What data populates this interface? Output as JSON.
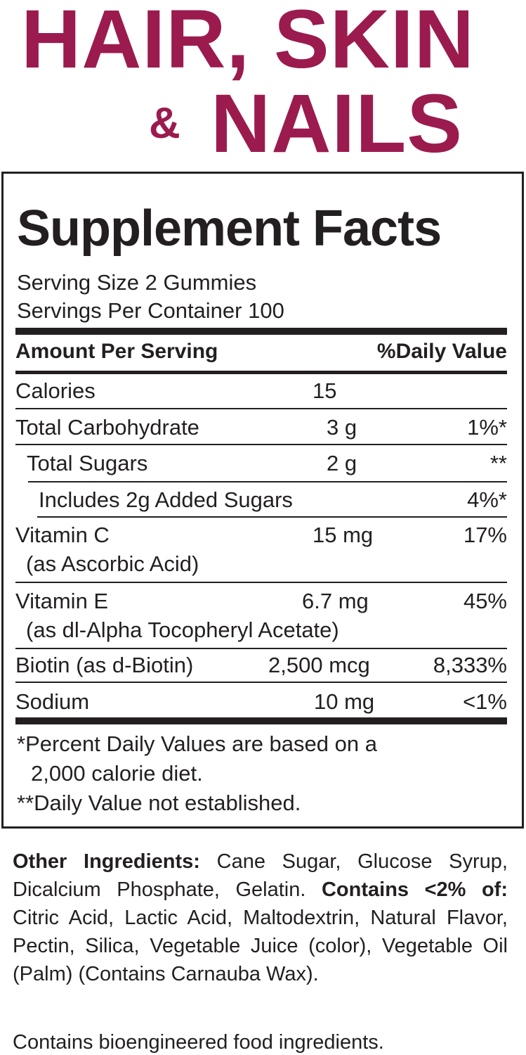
{
  "title": {
    "line1": "HAIR, SKIN",
    "amp": "&",
    "line2": "NAILS",
    "color": "#9b1b4f"
  },
  "facts": {
    "heading": "Supplement Facts",
    "serving_size": "Serving Size 2 Gummies",
    "servings_per_container": "Servings Per Container 100",
    "col_amount": "Amount Per Serving",
    "col_dv": "%Daily Value",
    "rows": [
      {
        "label": "Calories",
        "amount": "15",
        "dv": ""
      },
      {
        "label": "Total Carbohydrate",
        "amount": "3 g",
        "dv": "1%*"
      },
      {
        "label": "Total Sugars",
        "amount": "2 g",
        "dv": "**"
      },
      {
        "label": "Includes 2g Added Sugars",
        "amount": "",
        "dv": "4%*"
      },
      {
        "label": "Vitamin C",
        "sub": "(as Ascorbic Acid)",
        "amount": "15 mg",
        "dv": "17%"
      },
      {
        "label": "Vitamin E",
        "sub": "(as dl-Alpha Tocopheryl Acetate)",
        "amount": "6.7 mg",
        "dv": "45%"
      },
      {
        "label": "Biotin (as d-Biotin)",
        "amount": "2,500 mcg",
        "dv": "8,333%"
      },
      {
        "label": "Sodium",
        "amount": "10 mg",
        "dv": "<1%"
      }
    ],
    "footnote1a": "*Percent Daily Values are based on a",
    "footnote1b": "2,000 calorie diet.",
    "footnote2": "**Daily Value not established."
  },
  "ingredients": {
    "other_label": "Other Ingredients:",
    "other_text": " Cane Sugar, Glucose Syrup, Dicalcium Phosphate, Gelatin. ",
    "contains_label": "Contains <2% of:",
    "contains_text": " Citric Acid, Lactic Acid, Maltodextrin, Natural Flavor, Pectin, Silica, Vegetable Juice (color), Vegetable Oil (Palm) (Contains Carnauba Wax).",
    "bioengineered": "Contains bioengineered food ingredients."
  }
}
